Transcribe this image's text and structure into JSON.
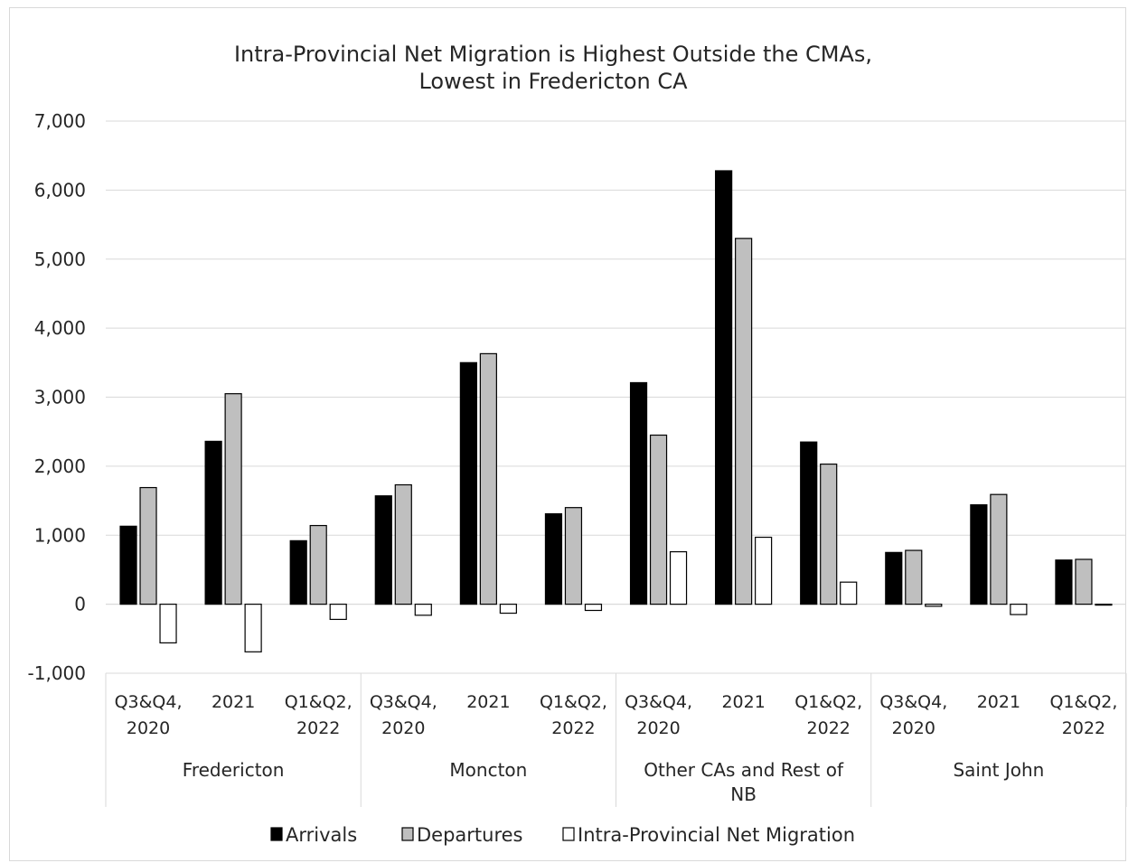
{
  "chart_data": {
    "type": "bar",
    "title_lines": [
      "Intra-Provincial Net Migration is Highest Outside the CMAs,",
      "Lowest in Fredericton CA"
    ],
    "xlabel": "",
    "ylabel": "",
    "ylim": [
      -1000,
      7000
    ],
    "yticks": [
      -1000,
      0,
      1000,
      2000,
      3000,
      4000,
      5000,
      6000,
      7000
    ],
    "ytick_labels": [
      "-1,000",
      "0",
      "1,000",
      "2,000",
      "3,000",
      "4,000",
      "5,000",
      "6,000",
      "7,000"
    ],
    "grid": "horizontal",
    "legend_position": "bottom",
    "groups": [
      {
        "label_lines": [
          "Fredericton"
        ],
        "periods": [
          [
            "Q3&Q4,",
            "2020"
          ],
          [
            "2021"
          ],
          [
            "Q1&Q2,",
            "2022"
          ]
        ]
      },
      {
        "label_lines": [
          "Moncton"
        ],
        "periods": [
          [
            "Q3&Q4,",
            "2020"
          ],
          [
            "2021"
          ],
          [
            "Q1&Q2,",
            "2022"
          ]
        ]
      },
      {
        "label_lines": [
          "Other CAs and Rest of",
          "NB"
        ],
        "periods": [
          [
            "Q3&Q4,",
            "2020"
          ],
          [
            "2021"
          ],
          [
            "Q1&Q2,",
            "2022"
          ]
        ]
      },
      {
        "label_lines": [
          "Saint John"
        ],
        "periods": [
          [
            "Q3&Q4,",
            "2020"
          ],
          [
            "2021"
          ],
          [
            "Q1&Q2,",
            "2022"
          ]
        ]
      }
    ],
    "series": [
      {
        "name": "Arrivals",
        "color": "#000000",
        "values": [
          1130,
          2360,
          920,
          1570,
          3500,
          1310,
          3210,
          6280,
          2350,
          750,
          1440,
          640
        ]
      },
      {
        "name": "Departures",
        "color": "#bfbfbf",
        "values": [
          1690,
          3050,
          1140,
          1730,
          3630,
          1400,
          2450,
          5300,
          2030,
          780,
          1590,
          650
        ]
      },
      {
        "name": "Intra-Provincial Net Migration",
        "color": "#ffffff",
        "values": [
          -560,
          -690,
          -220,
          -160,
          -130,
          -90,
          760,
          970,
          320,
          -30,
          -150,
          -10
        ]
      }
    ]
  }
}
